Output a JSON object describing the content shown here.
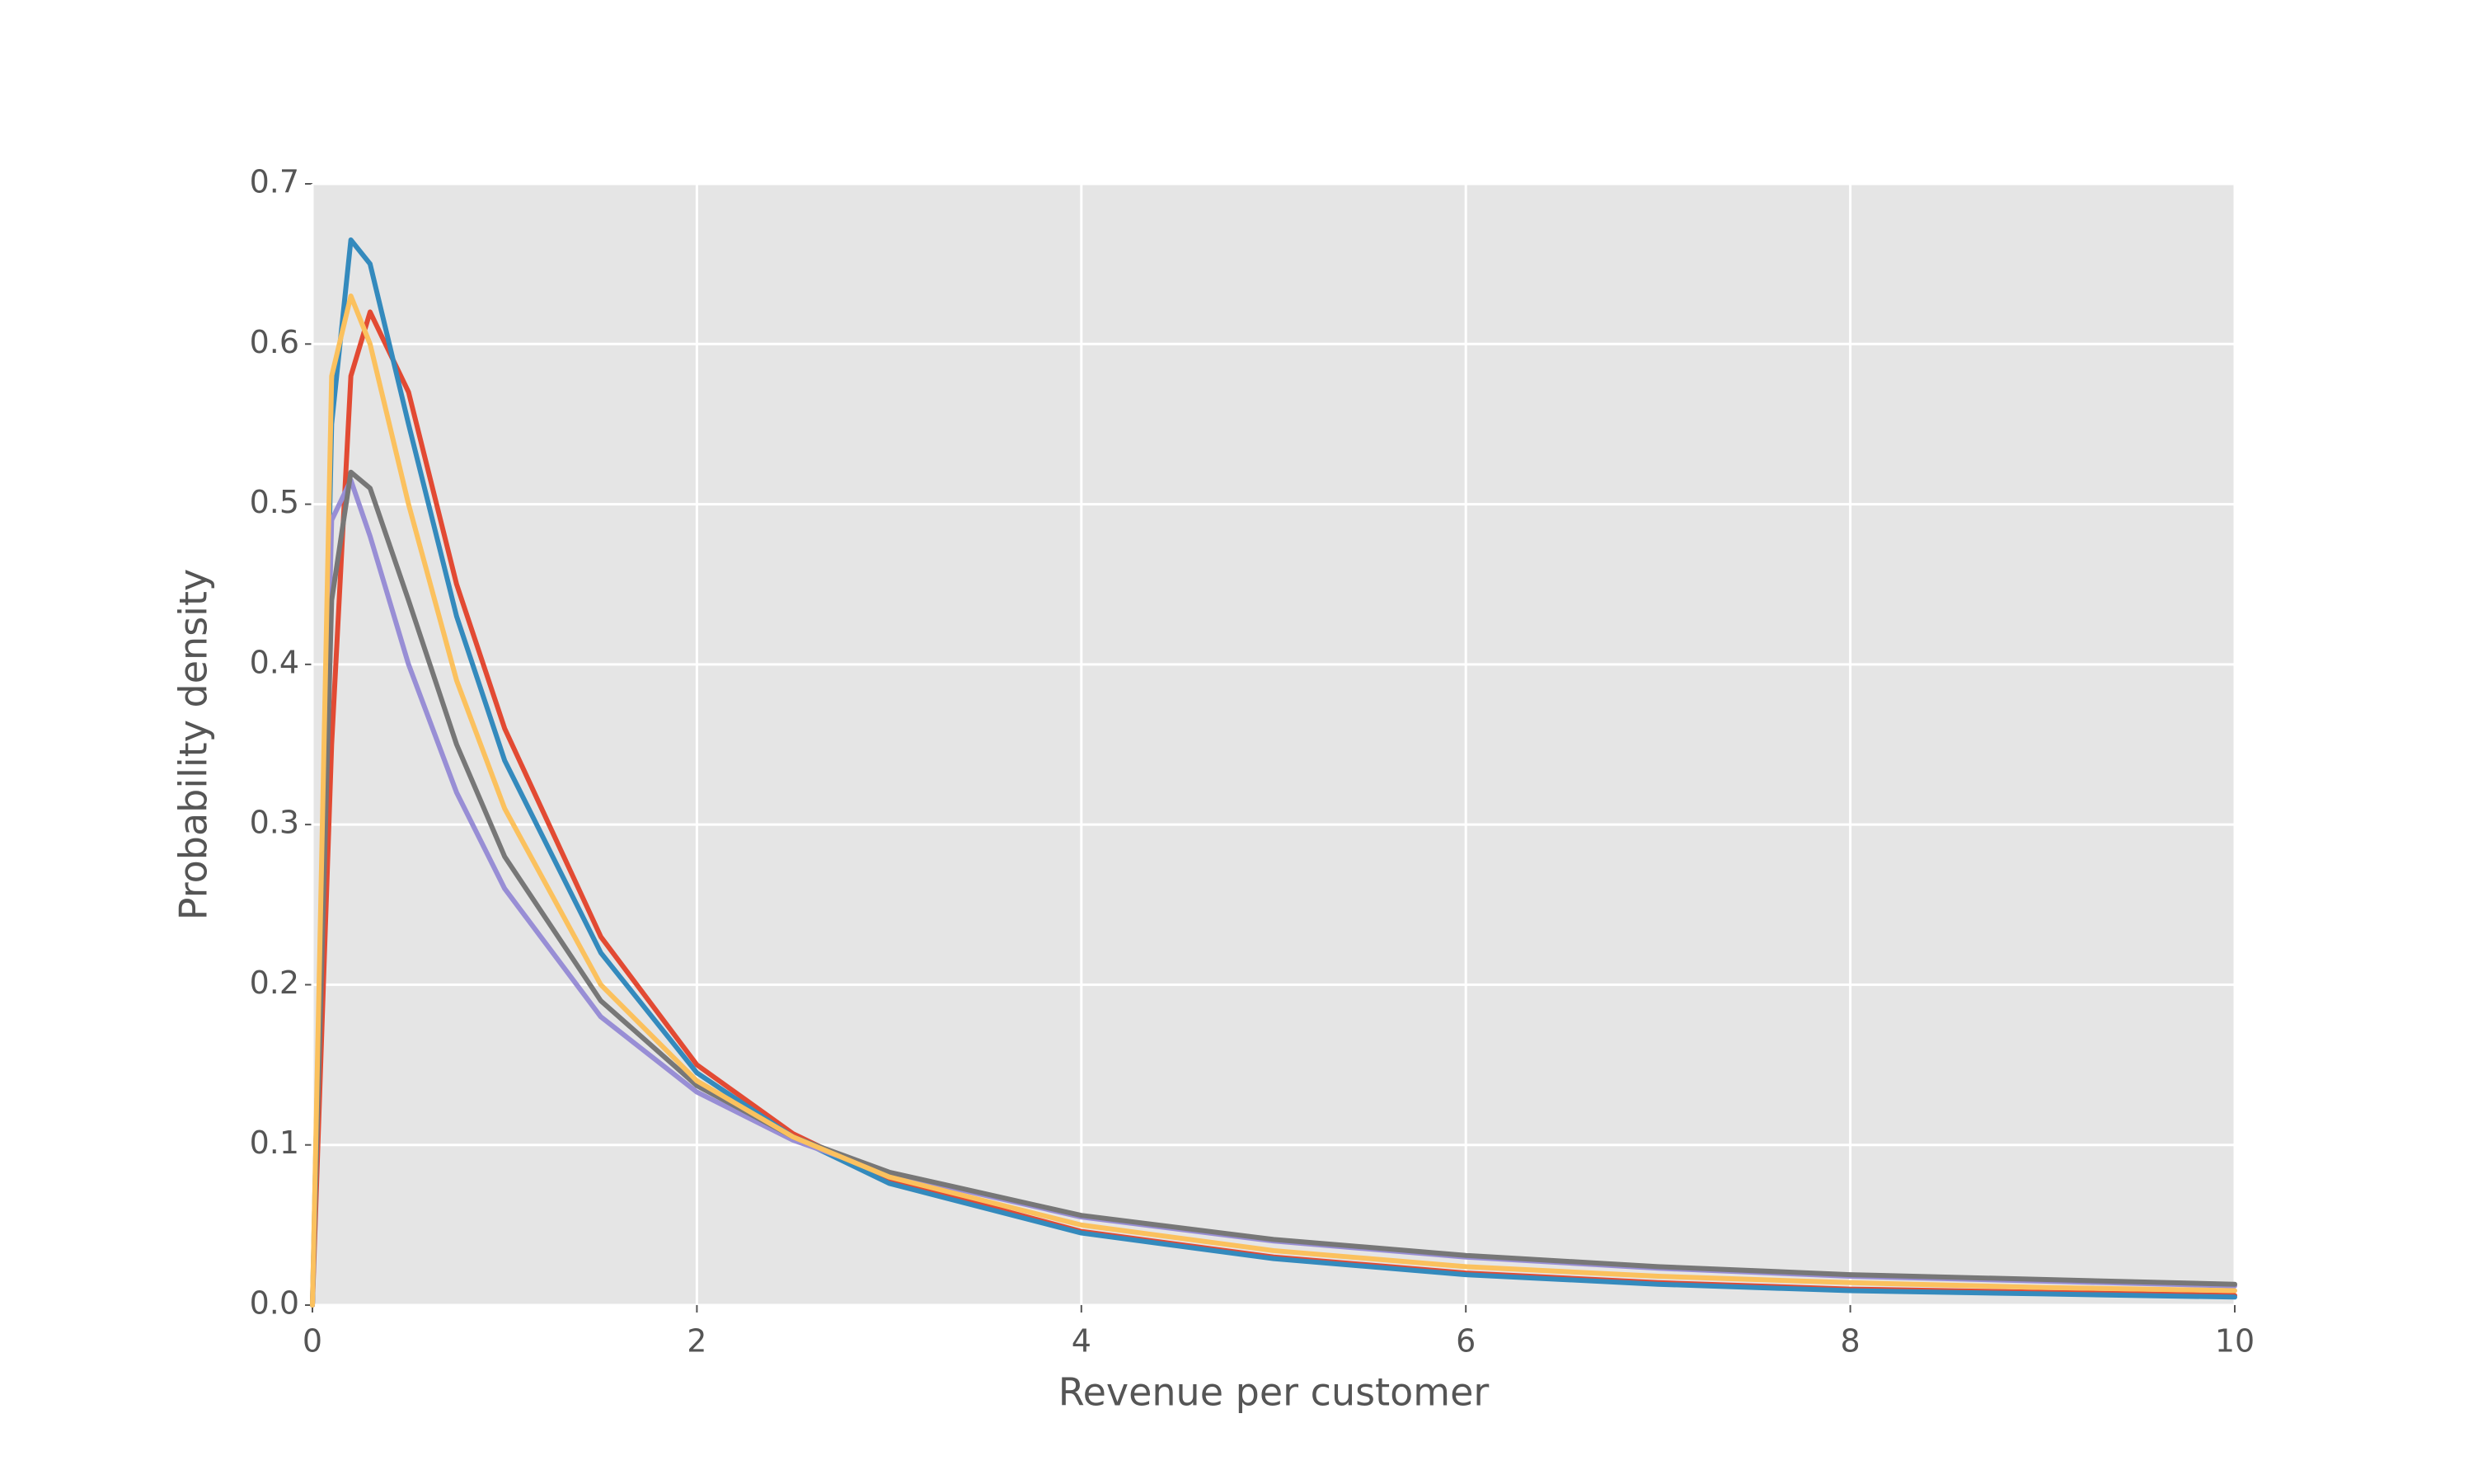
{
  "chart_data": {
    "type": "line",
    "xlabel": "Revenue per customer",
    "ylabel": "Probability density",
    "x": [
      0,
      0.1,
      0.2,
      0.3,
      0.5,
      0.75,
      1,
      1.5,
      2,
      2.5,
      3,
      4,
      5,
      6,
      7,
      8,
      9,
      10
    ],
    "series": [
      {
        "color": "#E24A33",
        "values": [
          0,
          0.35,
          0.58,
          0.62,
          0.57,
          0.45,
          0.36,
          0.23,
          0.15,
          0.107,
          0.078,
          0.046,
          0.03,
          0.02,
          0.014,
          0.01,
          0.008,
          0.006
        ]
      },
      {
        "color": "#348ABD",
        "values": [
          0,
          0.55,
          0.665,
          0.65,
          0.55,
          0.43,
          0.34,
          0.22,
          0.145,
          0.105,
          0.076,
          0.045,
          0.029,
          0.019,
          0.013,
          0.009,
          0.007,
          0.005
        ]
      },
      {
        "color": "#988ED5",
        "values": [
          0,
          0.49,
          0.515,
          0.48,
          0.4,
          0.32,
          0.26,
          0.18,
          0.133,
          0.103,
          0.082,
          0.055,
          0.04,
          0.03,
          0.023,
          0.018,
          0.015,
          0.012
        ]
      },
      {
        "color": "#777777",
        "values": [
          0,
          0.44,
          0.52,
          0.51,
          0.44,
          0.35,
          0.28,
          0.19,
          0.137,
          0.105,
          0.083,
          0.056,
          0.041,
          0.031,
          0.024,
          0.019,
          0.016,
          0.013
        ]
      },
      {
        "color": "#FBC15E",
        "values": [
          0,
          0.58,
          0.63,
          0.6,
          0.5,
          0.39,
          0.31,
          0.2,
          0.14,
          0.105,
          0.08,
          0.05,
          0.034,
          0.024,
          0.018,
          0.014,
          0.011,
          0.009
        ]
      }
    ],
    "xlim": [
      0,
      10
    ],
    "xticks": [
      0,
      2,
      4,
      6,
      8,
      10
    ],
    "ylim": [
      0,
      0.7
    ],
    "yticks": [
      {
        "value": 0,
        "label": "0.0"
      },
      0.1,
      0.2,
      0.3,
      0.4,
      0.5,
      0.6,
      0.7
    ],
    "grid": true,
    "background": "#E5E5E5"
  }
}
